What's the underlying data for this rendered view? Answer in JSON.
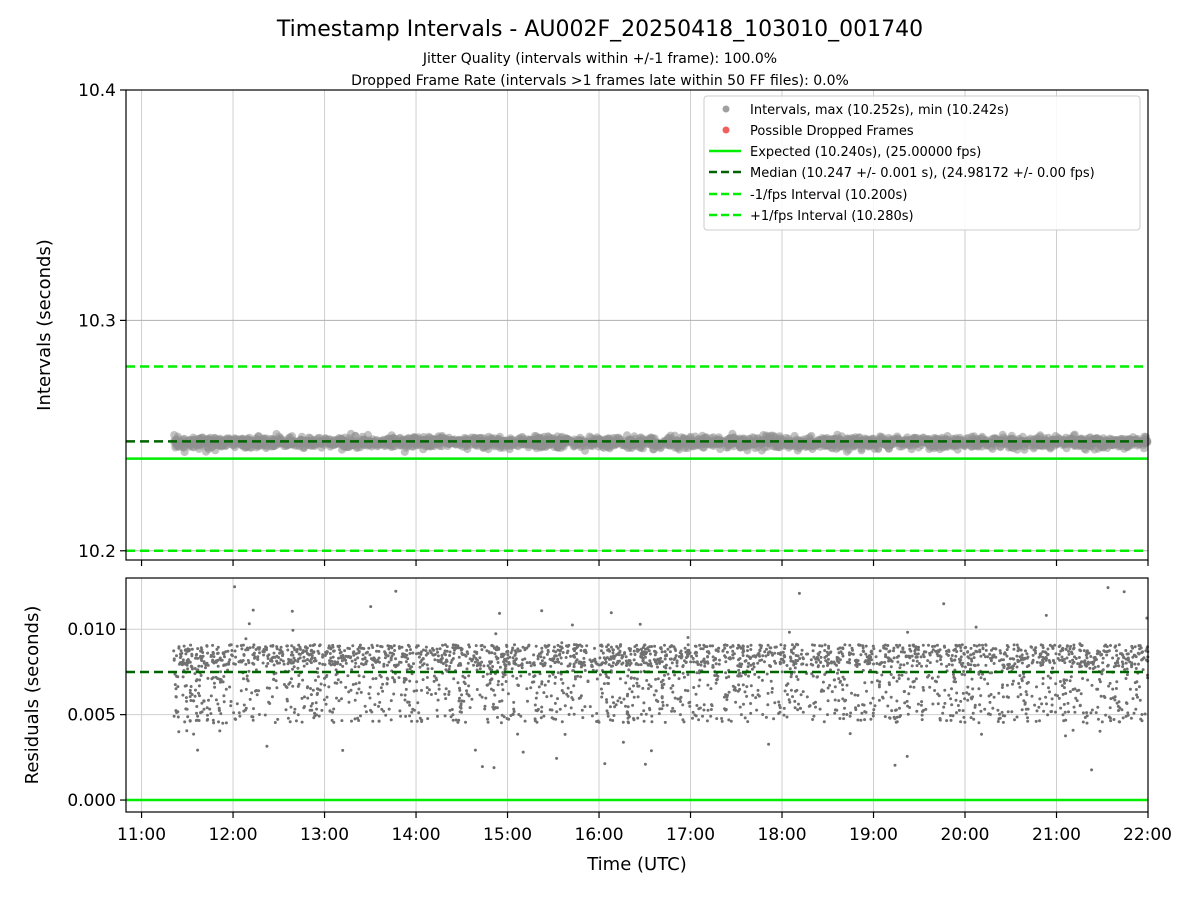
{
  "figure": {
    "title": "Timestamp Intervals - AU002F_20250418_103010_001740",
    "subtitle_line1": "Jitter Quality (intervals within +/-1 frame): 100.0%",
    "subtitle_line2": "Dropped Frame Rate (intervals >1 frames late within 50 FF files): 0.0%"
  },
  "chart_data": [
    {
      "type": "scatter",
      "panel": "intervals",
      "xlabel": "",
      "ylabel": "Intervals (seconds)",
      "x_range_hours": [
        10.83,
        22.0
      ],
      "ylim": [
        10.196,
        10.4
      ],
      "yticks": [
        10.2,
        10.3,
        10.4
      ],
      "ytick_labels": [
        "10.2",
        "10.3",
        "10.4"
      ],
      "grid": true,
      "legend_position": "top-right",
      "data_x_range_hours": [
        11.35,
        22.0
      ],
      "series": [
        {
          "name": "Intervals, max (10.252s), min (10.242s)",
          "kind": "scatter",
          "color": "#808080",
          "center": 10.247,
          "spread": 0.001,
          "min": 10.242,
          "max": 10.252
        },
        {
          "name": "Possible Dropped Frames",
          "kind": "scatter",
          "color": "#f06060",
          "values": []
        }
      ],
      "lines": [
        {
          "name": "Expected (10.240s), (25.00000 fps)",
          "y": 10.24,
          "color": "#00ee00",
          "style": "solid"
        },
        {
          "name": "Median (10.247 +/- 0.001 s), (24.98172 +/- 0.00 fps)",
          "y": 10.2475,
          "color": "#006400",
          "style": "dashed"
        },
        {
          "name": "-1/fps Interval (10.200s)",
          "y": 10.2,
          "color": "#00ee00",
          "style": "dashed"
        },
        {
          "name": "+1/fps Interval (10.280s)",
          "y": 10.28,
          "color": "#00ee00",
          "style": "dashed"
        }
      ]
    },
    {
      "type": "scatter",
      "panel": "residuals",
      "xlabel": "Time (UTC)",
      "ylabel": "Residuals (seconds)",
      "x_range_hours": [
        10.83,
        22.0
      ],
      "xticks_hours": [
        11,
        12,
        13,
        14,
        15,
        16,
        17,
        18,
        19,
        20,
        21,
        22
      ],
      "xtick_labels": [
        "11:00",
        "12:00",
        "13:00",
        "14:00",
        "15:00",
        "16:00",
        "17:00",
        "18:00",
        "19:00",
        "20:00",
        "21:00",
        "22:00"
      ],
      "ylim": [
        -0.0007,
        0.013
      ],
      "yticks": [
        0.0,
        0.005,
        0.01
      ],
      "ytick_labels": [
        "0.000",
        "0.005",
        "0.010"
      ],
      "grid": true,
      "data_x_range_hours": [
        11.35,
        22.0
      ],
      "series": [
        {
          "kind": "scatter",
          "color": "#707070",
          "dense_band": [
            0.0078,
            0.0091
          ],
          "sparse_band": [
            0.0045,
            0.0078
          ],
          "outlier_range": [
            0.0017,
            0.0125
          ]
        }
      ],
      "lines": [
        {
          "y": 0.0,
          "color": "#00ee00",
          "style": "solid"
        },
        {
          "y": 0.0075,
          "color": "#006400",
          "style": "dashed"
        }
      ]
    }
  ]
}
